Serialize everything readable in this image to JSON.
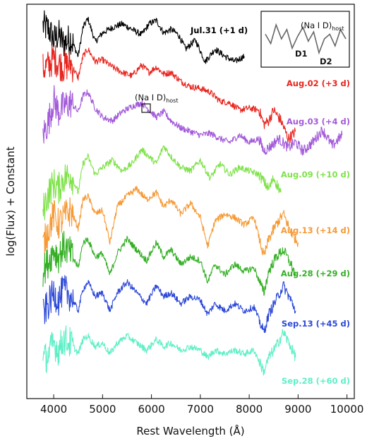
{
  "chart_data": {
    "type": "line",
    "xlabel": "Rest Wavelength  (Å)",
    "ylabel": "log(Flux) + Constant",
    "xlim": [
      3450,
      10150
    ],
    "xticks": [
      4000,
      5000,
      6000,
      7000,
      8000,
      9000,
      10000
    ],
    "grid": false,
    "legend": "labels beside each spectrum",
    "series": [
      {
        "name": "Jul.31 (+1 d)",
        "color": "#000000",
        "x": [
          3780,
          3900,
          4000,
          4100,
          4200,
          4350,
          4500,
          4600,
          4700,
          4850,
          5000,
          5200,
          5400,
          5600,
          5800,
          5950,
          6100,
          6250,
          6400,
          6550,
          6700,
          6900,
          7100,
          7300,
          7500,
          7700,
          7900
        ],
        "y": [
          1.03,
          1.01,
          0.95,
          0.98,
          0.93,
          0.96,
          0.86,
          1.02,
          1.07,
          0.94,
          0.99,
          1.02,
          1.04,
          1.01,
          0.98,
          1.04,
          1.06,
          0.99,
          1.01,
          0.98,
          0.9,
          0.95,
          0.83,
          0.9,
          0.86,
          0.83,
          0.86
        ]
      },
      {
        "name": "Aug.02 (+3 d)",
        "color": "#e8251f",
        "x": [
          3780,
          3900,
          4000,
          4100,
          4200,
          4350,
          4500,
          4600,
          4700,
          4850,
          5000,
          5200,
          5400,
          5600,
          5800,
          5950,
          6100,
          6250,
          6400,
          6600,
          6800,
          7000,
          7200,
          7400,
          7600,
          7800,
          8000,
          8200,
          8300,
          8400,
          8500,
          8650,
          8800,
          8950
        ],
        "y": [
          0.79,
          0.81,
          0.85,
          0.82,
          0.8,
          0.82,
          0.74,
          0.86,
          0.9,
          0.83,
          0.84,
          0.8,
          0.77,
          0.75,
          0.81,
          0.77,
          0.8,
          0.76,
          0.77,
          0.72,
          0.69,
          0.68,
          0.66,
          0.61,
          0.6,
          0.56,
          0.57,
          0.56,
          0.48,
          0.5,
          0.56,
          0.5,
          0.4,
          0.44
        ]
      },
      {
        "name": "Aug.03 (+4 d)",
        "color": "#a35ad9",
        "x": [
          3780,
          3900,
          4000,
          4100,
          4200,
          4350,
          4500,
          4600,
          4700,
          4850,
          5000,
          5200,
          5400,
          5600,
          5800,
          5950,
          6100,
          6250,
          6400,
          6600,
          6800,
          7000,
          7200,
          7400,
          7600,
          7800,
          8000,
          8200,
          8300,
          8450,
          8600,
          8800,
          8950,
          9100,
          9300,
          9500,
          9700,
          9900
        ],
        "y": [
          0.42,
          0.5,
          0.62,
          0.55,
          0.58,
          0.6,
          0.55,
          0.64,
          0.66,
          0.57,
          0.52,
          0.5,
          0.55,
          0.58,
          0.6,
          0.56,
          0.52,
          0.55,
          0.5,
          0.46,
          0.44,
          0.42,
          0.43,
          0.4,
          0.38,
          0.42,
          0.38,
          0.4,
          0.33,
          0.36,
          0.4,
          0.35,
          0.38,
          0.33,
          0.38,
          0.45,
          0.36,
          0.42
        ]
      },
      {
        "name": "Aug.09 (+10 d)",
        "color": "#7fe24a",
        "x": [
          3780,
          3900,
          4000,
          4100,
          4200,
          4350,
          4500,
          4600,
          4700,
          4850,
          5000,
          5200,
          5400,
          5600,
          5800,
          5950,
          6100,
          6250,
          6400,
          6600,
          6800,
          7000,
          7200,
          7400,
          7600,
          7800,
          8000,
          8200,
          8400,
          8500,
          8650
        ],
        "y": [
          0.0,
          0.1,
          0.15,
          0.12,
          0.18,
          0.2,
          0.1,
          0.26,
          0.3,
          0.2,
          0.24,
          0.28,
          0.22,
          0.26,
          0.34,
          0.3,
          0.26,
          0.36,
          0.3,
          0.24,
          0.22,
          0.28,
          0.18,
          0.26,
          0.2,
          0.24,
          0.22,
          0.2,
          0.12,
          0.18,
          0.1
        ]
      },
      {
        "name": "Aug.13 (+14 d)",
        "color": "#f69a36",
        "x": [
          3780,
          3900,
          4000,
          4100,
          4200,
          4350,
          4500,
          4600,
          4700,
          4850,
          5000,
          5150,
          5300,
          5500,
          5700,
          5900,
          6100,
          6250,
          6400,
          6600,
          6800,
          7000,
          7150,
          7300,
          7500,
          7700,
          7900,
          8100,
          8300,
          8400,
          8550,
          8700,
          8850,
          9000
        ],
        "y": [
          -0.2,
          -0.1,
          -0.02,
          -0.08,
          -0.04,
          0.0,
          -0.1,
          0.06,
          0.08,
          -0.02,
          0.0,
          -0.18,
          0.02,
          0.08,
          0.12,
          0.06,
          0.1,
          0.02,
          0.06,
          -0.02,
          0.04,
          -0.04,
          -0.2,
          -0.06,
          -0.02,
          -0.04,
          -0.08,
          -0.04,
          -0.26,
          -0.16,
          -0.08,
          -0.02,
          -0.12,
          -0.18
        ]
      },
      {
        "name": "Aug.28 (+29 d)",
        "color": "#35b026",
        "x": [
          3780,
          3900,
          4000,
          4100,
          4200,
          4350,
          4500,
          4600,
          4700,
          4850,
          5000,
          5150,
          5300,
          5500,
          5700,
          5900,
          6100,
          6250,
          6400,
          6600,
          6800,
          7000,
          7150,
          7300,
          7500,
          7700,
          7900,
          8100,
          8300,
          8400,
          8550,
          8700,
          8850,
          8950
        ],
        "y": [
          -0.34,
          -0.28,
          -0.22,
          -0.26,
          -0.2,
          -0.24,
          -0.32,
          -0.18,
          -0.16,
          -0.26,
          -0.24,
          -0.36,
          -0.24,
          -0.16,
          -0.22,
          -0.28,
          -0.18,
          -0.26,
          -0.22,
          -0.3,
          -0.26,
          -0.28,
          -0.4,
          -0.3,
          -0.36,
          -0.3,
          -0.34,
          -0.32,
          -0.46,
          -0.34,
          -0.26,
          -0.22,
          -0.3,
          -0.36
        ]
      },
      {
        "name": "Sep.13 (+45 d)",
        "color": "#2d49d8",
        "x": [
          3780,
          3900,
          4000,
          4100,
          4200,
          4350,
          4500,
          4600,
          4700,
          4850,
          5000,
          5150,
          5300,
          5500,
          5700,
          5900,
          6100,
          6250,
          6400,
          6600,
          6800,
          7000,
          7150,
          7300,
          7500,
          7700,
          7900,
          8100,
          8300,
          8400,
          8550,
          8700,
          8850,
          8950
        ],
        "y": [
          -0.58,
          -0.52,
          -0.46,
          -0.5,
          -0.44,
          -0.48,
          -0.56,
          -0.44,
          -0.4,
          -0.48,
          -0.46,
          -0.56,
          -0.46,
          -0.4,
          -0.46,
          -0.52,
          -0.42,
          -0.48,
          -0.46,
          -0.52,
          -0.48,
          -0.5,
          -0.58,
          -0.52,
          -0.56,
          -0.52,
          -0.56,
          -0.54,
          -0.68,
          -0.58,
          -0.5,
          -0.42,
          -0.5,
          -0.56
        ]
      },
      {
        "name": "Sep.28 (+60 d)",
        "color": "#5fefc6",
        "x": [
          3780,
          3900,
          4000,
          4100,
          4200,
          4350,
          4500,
          4600,
          4700,
          4850,
          5000,
          5150,
          5300,
          5500,
          5700,
          5900,
          6100,
          6250,
          6400,
          6600,
          6800,
          7000,
          7150,
          7300,
          7500,
          7700,
          7900,
          8100,
          8300,
          8400,
          8550,
          8700,
          8850,
          8950
        ],
        "y": [
          -0.84,
          -0.8,
          -0.74,
          -0.78,
          -0.72,
          -0.74,
          -0.8,
          -0.72,
          -0.7,
          -0.76,
          -0.74,
          -0.8,
          -0.74,
          -0.7,
          -0.74,
          -0.78,
          -0.72,
          -0.76,
          -0.74,
          -0.78,
          -0.76,
          -0.78,
          -0.82,
          -0.78,
          -0.8,
          -0.78,
          -0.8,
          -0.78,
          -0.9,
          -0.82,
          -0.76,
          -0.68,
          -0.76,
          -0.82
        ]
      }
    ],
    "annotations": {
      "nai_label_main": "(Na I D)",
      "nai_label_main_sub": "host",
      "nai_box_center_x": 5890,
      "inset": {
        "label": "(Na I D)",
        "label_sub": "host",
        "d1": "D1",
        "d2": "D2",
        "values": [
          0.6,
          0.4,
          0.8,
          0.5,
          0.7,
          0.3,
          0.55,
          0.75,
          0.45,
          0.65,
          0.2,
          0.5,
          0.6,
          0.35,
          0.7,
          0.5
        ]
      }
    }
  }
}
